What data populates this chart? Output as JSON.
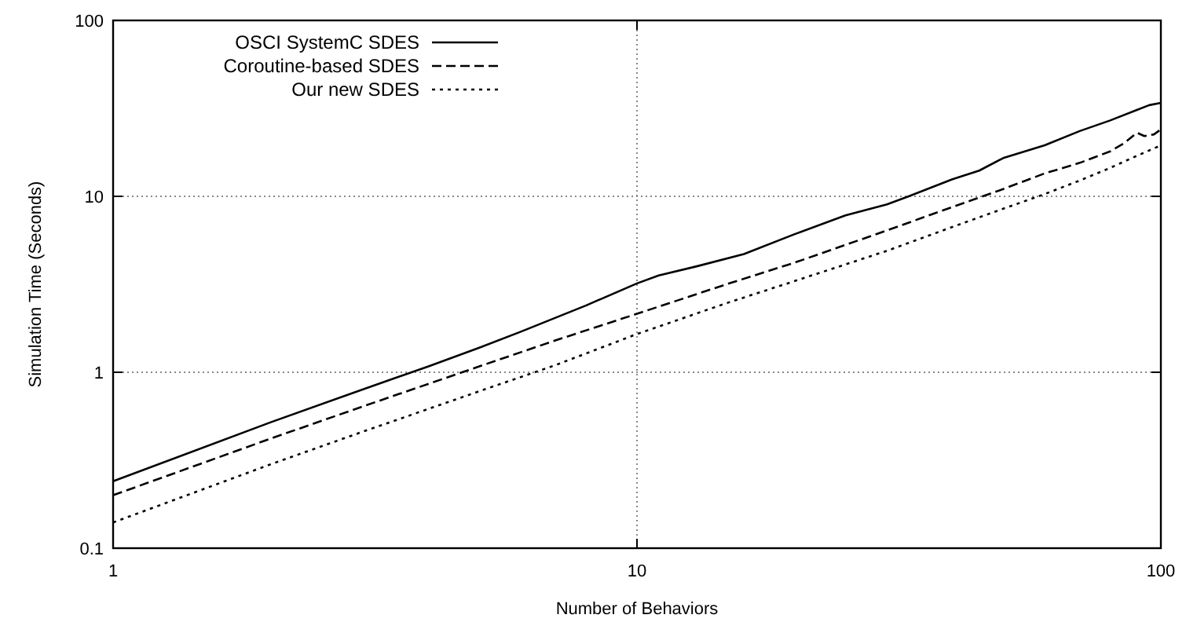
{
  "chart_data": {
    "type": "line",
    "xlabel": "Number of Behaviors",
    "ylabel": "Simulation Time (Seconds)",
    "log": "xy",
    "grid": true,
    "legend": "top left",
    "xlim": [
      1,
      100
    ],
    "xticks": [
      1,
      10,
      100
    ],
    "ylim": [
      0.1,
      100
    ],
    "yticks": [
      0.1,
      1,
      10,
      100
    ],
    "series": [
      {
        "name": "OSCI SystemC SDES",
        "color": "#000000",
        "line_style": "solid",
        "x": [
          1,
          2,
          3,
          4,
          5,
          6,
          8,
          10,
          11,
          13,
          16,
          20,
          25,
          30,
          33,
          40,
          45,
          50,
          60,
          70,
          80,
          90,
          95,
          100
        ],
        "values": [
          0.24,
          0.52,
          0.8,
          1.08,
          1.38,
          1.7,
          2.4,
          3.2,
          3.55,
          4.0,
          4.7,
          6.1,
          7.8,
          9.0,
          10.0,
          12.5,
          14,
          16.5,
          19.5,
          23.5,
          27,
          31,
          33,
          34
        ]
      },
      {
        "name": "Coroutine-based SDES",
        "color": "#000000",
        "line_style": "dashed",
        "x": [
          1,
          2,
          3,
          5,
          7,
          10,
          15,
          20,
          30,
          40,
          50,
          60,
          70,
          80,
          85,
          90,
          93,
          97,
          100
        ],
        "values": [
          0.2,
          0.42,
          0.64,
          1.08,
          1.52,
          2.15,
          3.2,
          4.2,
          6.4,
          8.7,
          11,
          13.5,
          15.5,
          18,
          20,
          23,
          22,
          22.5,
          24
        ]
      },
      {
        "name": "Our new SDES",
        "color": "#000000",
        "line_style": "dotted",
        "x": [
          1,
          2,
          3,
          5,
          7,
          10,
          15,
          20,
          30,
          40,
          50,
          60,
          70,
          80,
          90,
          100
        ],
        "values": [
          0.14,
          0.3,
          0.46,
          0.78,
          1.1,
          1.65,
          2.5,
          3.3,
          4.9,
          6.7,
          8.5,
          10.3,
          12.3,
          14.5,
          17,
          19.5
        ]
      }
    ]
  }
}
